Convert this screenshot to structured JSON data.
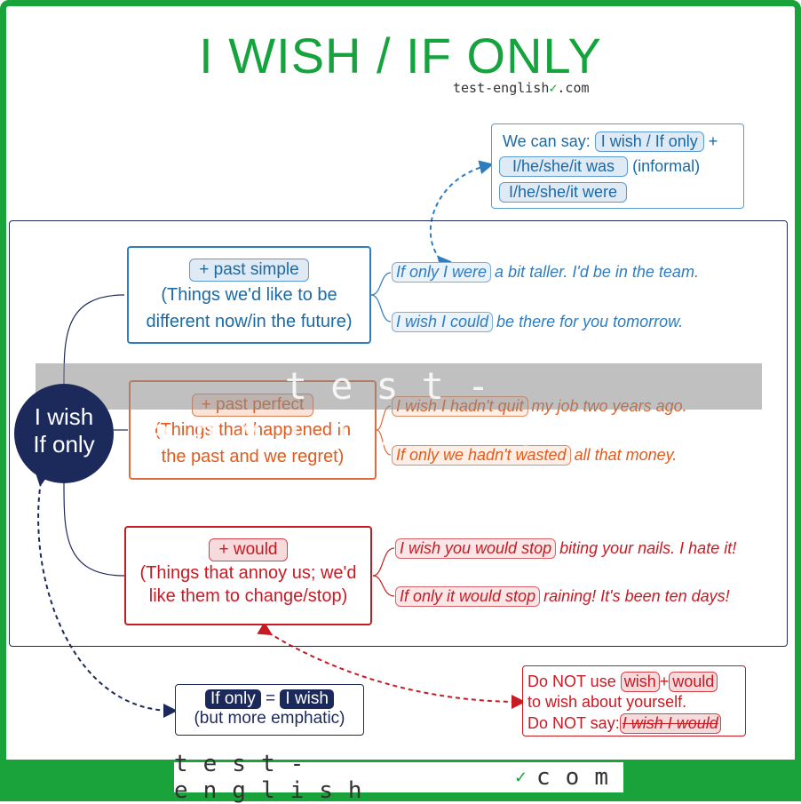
{
  "title": "I WISH / IF ONLY",
  "brand": {
    "prefix": "test-english",
    "suffix": ".com"
  },
  "center": {
    "line1": "I wish",
    "line2": "If only"
  },
  "watermark": "test-english.com",
  "sections": [
    {
      "tag": "+ past simple",
      "desc1": "(Things we'd like to be",
      "desc2": "different now/in the future)",
      "color": "#2e7dbf",
      "examples": [
        {
          "pill": "If only I were",
          "rest": "a bit taller. I'd be in the team."
        },
        {
          "pill": "I wish I could",
          "rest": "be there for you tomorrow."
        }
      ]
    },
    {
      "tag": "+ past perfect",
      "desc1": "(Things that happened in",
      "desc2": "the past and we regret)",
      "color": "#e06a3a",
      "examples": [
        {
          "pill": "I wish I hadn't quit",
          "rest": "my job two years ago."
        },
        {
          "pill": "If only we hadn't wasted",
          "rest": "all that money."
        }
      ]
    },
    {
      "tag": "+ would",
      "desc1": "(Things that annoy us; we'd",
      "desc2": "like them to change/stop)",
      "color": "#c81a23",
      "examples": [
        {
          "pill": "I wish you would stop",
          "rest": "biting your nails. I hate it!"
        },
        {
          "pill": "If only it would stop",
          "rest": "raining! It's been ten days!"
        }
      ]
    }
  ],
  "note_blue": {
    "lead": "We can say:",
    "chip1": "I wish / If only",
    "plus": "+",
    "chip2": "I/he/she/it was",
    "informal": "(informal)",
    "chip3": "I/he/she/it were"
  },
  "note_red": {
    "line1_lead": "Do NOT use",
    "chip_wish": "wish",
    "plus": "+",
    "chip_would": "would",
    "line2": "to wish about yourself.",
    "line3_lead": "Do NOT say:",
    "wrong": "I wish I would"
  },
  "note_navy": {
    "chip_if_only": "If only",
    "equals": "=",
    "chip_i_wish": "I wish",
    "line2": "(but more emphatic)"
  },
  "footer": {
    "prefix": "test-english",
    "suffix": "com"
  },
  "colors": {
    "green": "#1aa33a",
    "navy": "#1c2a5b",
    "blue": "#2e7dbf",
    "orange": "#e06a3a",
    "red": "#c81a23"
  }
}
